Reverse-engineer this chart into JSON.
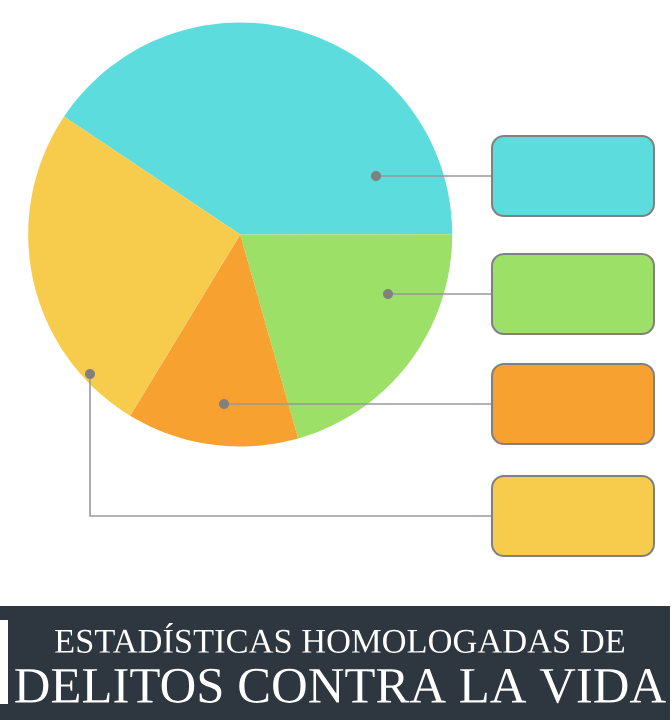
{
  "chart_data": {
    "type": "pie",
    "title": "ESTADÍSTICAS HOMOLOGADAS DE",
    "subtitle": "DELITOS CONTRA LA VIDA",
    "categories": [
      null,
      null,
      null,
      null
    ],
    "values": [
      40.6,
      20.6,
      13.1,
      25.7
    ],
    "colors": [
      "#5ddcdd",
      "#9de067",
      "#f7a230",
      "#f7cb4b"
    ]
  }
}
